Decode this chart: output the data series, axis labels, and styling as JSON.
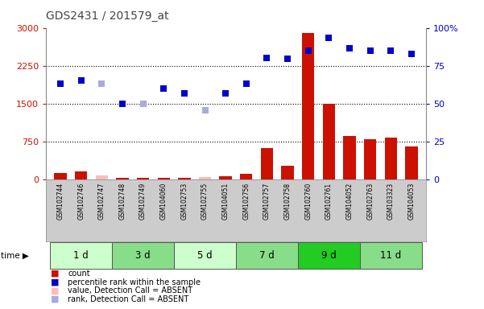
{
  "title": "GDS2431 / 201579_at",
  "samples": [
    "GSM102744",
    "GSM102746",
    "GSM102747",
    "GSM102748",
    "GSM102749",
    "GSM104060",
    "GSM102753",
    "GSM102755",
    "GSM104051",
    "GSM102756",
    "GSM102757",
    "GSM102758",
    "GSM102760",
    "GSM102761",
    "GSM104052",
    "GSM102763",
    "GSM103323",
    "GSM104053"
  ],
  "time_groups": [
    {
      "label": "1 d",
      "start": 0,
      "end": 3,
      "color": "#ccffcc"
    },
    {
      "label": "3 d",
      "start": 3,
      "end": 6,
      "color": "#88dd88"
    },
    {
      "label": "5 d",
      "start": 6,
      "end": 9,
      "color": "#ccffcc"
    },
    {
      "label": "7 d",
      "start": 9,
      "end": 12,
      "color": "#88dd88"
    },
    {
      "label": "9 d",
      "start": 12,
      "end": 15,
      "color": "#22cc22"
    },
    {
      "label": "11 d",
      "start": 15,
      "end": 18,
      "color": "#88dd88"
    }
  ],
  "bar_values": [
    130,
    150,
    80,
    20,
    20,
    25,
    30,
    50,
    60,
    100,
    620,
    270,
    2900,
    1500,
    850,
    800,
    830,
    650
  ],
  "bar_absent": [
    false,
    false,
    true,
    false,
    false,
    false,
    false,
    true,
    false,
    false,
    false,
    false,
    false,
    false,
    false,
    false,
    false,
    false
  ],
  "rank_values": [
    1900,
    1950,
    1900,
    1500,
    1490,
    1800,
    1700,
    1370,
    1700,
    1900,
    2400,
    2380,
    2550,
    2800,
    2600,
    2550,
    2550,
    2480
  ],
  "rank_absent": [
    false,
    false,
    true,
    false,
    true,
    false,
    false,
    true,
    false,
    false,
    false,
    false,
    false,
    false,
    false,
    false,
    false,
    false
  ],
  "ylim_left": [
    0,
    3000
  ],
  "yticks_left": [
    0,
    750,
    1500,
    2250,
    3000
  ],
  "yticks_right_vals": [
    0,
    25,
    50,
    75,
    100
  ],
  "yticks_right_labels": [
    "0",
    "25",
    "50",
    "75",
    "100%"
  ],
  "bar_color": "#cc1100",
  "bar_absent_color": "#ffbbbb",
  "rank_color": "#0000cc",
  "rank_absent_color": "#aaaadd",
  "grid_color": "#000000",
  "title_color": "#444444",
  "left_tick_color": "#cc1100",
  "right_tick_color": "#0000cc",
  "sample_bg_color": "#cccccc",
  "legend_items": [
    {
      "label": "count",
      "color": "#cc1100"
    },
    {
      "label": "percentile rank within the sample",
      "color": "#0000cc"
    },
    {
      "label": "value, Detection Call = ABSENT",
      "color": "#ffbbbb"
    },
    {
      "label": "rank, Detection Call = ABSENT",
      "color": "#aaaadd"
    }
  ]
}
